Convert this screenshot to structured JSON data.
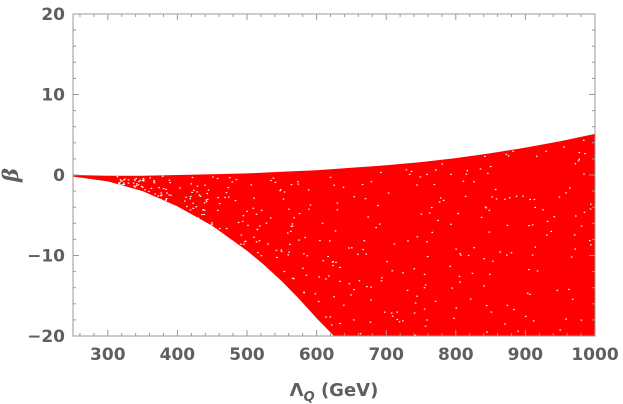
{
  "chart_data": {
    "type": "area",
    "title": "",
    "xlabel": "Λ",
    "xlabel_subscript": "Q",
    "xlabel_unit": " (GeV)",
    "ylabel": "β",
    "xlim": [
      250,
      1000
    ],
    "ylim": [
      -20,
      20
    ],
    "x_ticks": [
      300,
      400,
      500,
      600,
      700,
      800,
      900,
      1000
    ],
    "x_tick_labels": [
      "300",
      "400",
      "500",
      "600",
      "700",
      "800",
      "900",
      "1000"
    ],
    "y_ticks": [
      -20,
      -10,
      0,
      10,
      20
    ],
    "y_tick_labels": [
      "−20",
      "−10",
      "0",
      "10",
      "20"
    ],
    "grid": false,
    "fill_color": "#ff0000",
    "series": [
      {
        "role": "upper-boundary",
        "x": [
          250,
          300,
          350,
          400,
          450,
          500,
          550,
          600,
          650,
          700,
          750,
          800,
          850,
          900,
          950,
          1000
        ],
        "y": [
          0.0,
          -0.1,
          -0.1,
          0.0,
          0.1,
          0.2,
          0.4,
          0.6,
          0.9,
          1.2,
          1.6,
          2.1,
          2.7,
          3.4,
          4.2,
          5.1
        ]
      },
      {
        "role": "lower-boundary",
        "x": [
          250,
          300,
          350,
          400,
          450,
          500,
          525,
          550,
          575,
          600,
          625,
          1000
        ],
        "y": [
          -0.2,
          -0.8,
          -2.0,
          -3.9,
          -6.3,
          -9.4,
          -11.2,
          -13.2,
          -15.4,
          -17.8,
          -20.0,
          -20.0
        ]
      }
    ]
  }
}
